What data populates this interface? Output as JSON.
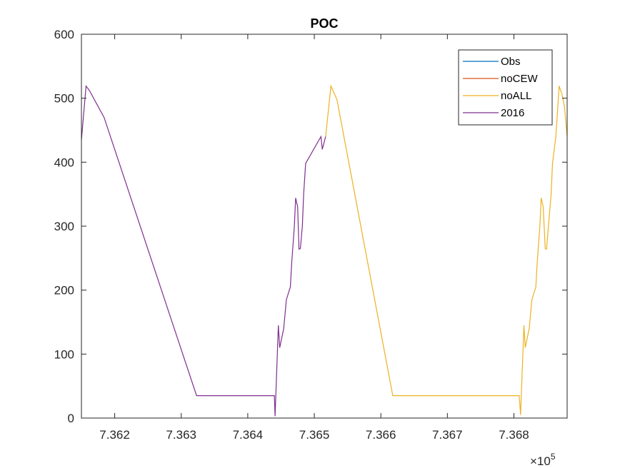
{
  "chart_data": {
    "type": "line",
    "title": "POC",
    "xlabel": "",
    "ylabel": "",
    "xlim": [
      736150,
      736880
    ],
    "ylim": [
      0,
      600
    ],
    "x_exponent_label": "×10",
    "x_exponent_power": "5",
    "x_ticks": [
      736200,
      736300,
      736400,
      736500,
      736600,
      736700,
      736800
    ],
    "x_tick_labels": [
      "7.362",
      "7.363",
      "7.364",
      "7.365",
      "7.366",
      "7.367",
      "7.368"
    ],
    "y_ticks": [
      0,
      100,
      200,
      300,
      400,
      500,
      600
    ],
    "y_tick_labels": [
      "0",
      "100",
      "200",
      "300",
      "400",
      "500",
      "600"
    ],
    "legend_position": "top-right",
    "series": [
      {
        "name": "Obs",
        "color": "#0072BD",
        "x": [],
        "y": []
      },
      {
        "name": "noCEW",
        "color": "#D95319",
        "x": [],
        "y": []
      },
      {
        "name": "noALL",
        "color": "#EDB120",
        "x": [
          736517,
          736525,
          736534,
          736618,
          736808,
          736810,
          736815,
          736817,
          736823,
          736827,
          736833,
          736835,
          736839,
          736841,
          736844,
          736847,
          736849,
          736856,
          736858,
          736863,
          736868,
          736872,
          736874,
          736876,
          736880
        ],
        "y": [
          440,
          519,
          498,
          35,
          35,
          5,
          145,
          110,
          140,
          185,
          205,
          243,
          300,
          344,
          330,
          265,
          264,
          350,
          398,
          440,
          519,
          507,
          498,
          486,
          440
        ]
      },
      {
        "name": "2016",
        "color": "#7E2F8E",
        "x": [
          736150,
          736157,
          736162,
          736184,
          736323,
          736440,
          736441,
          736446,
          736448,
          736454,
          736458,
          736464,
          736466,
          736470,
          736472,
          736475,
          736477,
          736479,
          736482,
          736484,
          736487,
          736510,
          736511,
          736512,
          736517
        ],
        "y": [
          435,
          519,
          512,
          470,
          35,
          35,
          3,
          145,
          110,
          140,
          185,
          205,
          243,
          300,
          344,
          330,
          264,
          265,
          300,
          350,
          398,
          440,
          430,
          420,
          440
        ]
      }
    ]
  }
}
